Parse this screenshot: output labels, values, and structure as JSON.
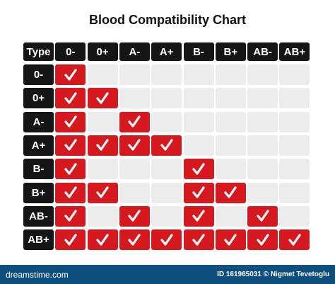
{
  "title": "Blood Compatibility Chart",
  "table": {
    "header": [
      "Type",
      "0-",
      "0+",
      "A-",
      "A+",
      "B-",
      "B+",
      "AB-",
      "AB+"
    ],
    "rows": [
      {
        "label": "0-",
        "cells": [
          true,
          false,
          false,
          false,
          false,
          false,
          false,
          false
        ]
      },
      {
        "label": "0+",
        "cells": [
          true,
          true,
          false,
          false,
          false,
          false,
          false,
          false
        ]
      },
      {
        "label": "A-",
        "cells": [
          true,
          false,
          true,
          false,
          false,
          false,
          false,
          false
        ]
      },
      {
        "label": "A+",
        "cells": [
          true,
          true,
          true,
          true,
          false,
          false,
          false,
          false
        ]
      },
      {
        "label": "B-",
        "cells": [
          true,
          false,
          false,
          false,
          true,
          false,
          false,
          false
        ]
      },
      {
        "label": "B+",
        "cells": [
          true,
          true,
          false,
          false,
          true,
          true,
          false,
          false
        ]
      },
      {
        "label": "AB-",
        "cells": [
          true,
          false,
          true,
          false,
          true,
          false,
          true,
          false
        ]
      },
      {
        "label": "AB+",
        "cells": [
          true,
          true,
          true,
          true,
          true,
          true,
          true,
          true
        ]
      }
    ]
  },
  "footer": {
    "brand": "dreamstime.com",
    "credit": "ID 161965031 © Nigmet Tevetoglu"
  }
}
